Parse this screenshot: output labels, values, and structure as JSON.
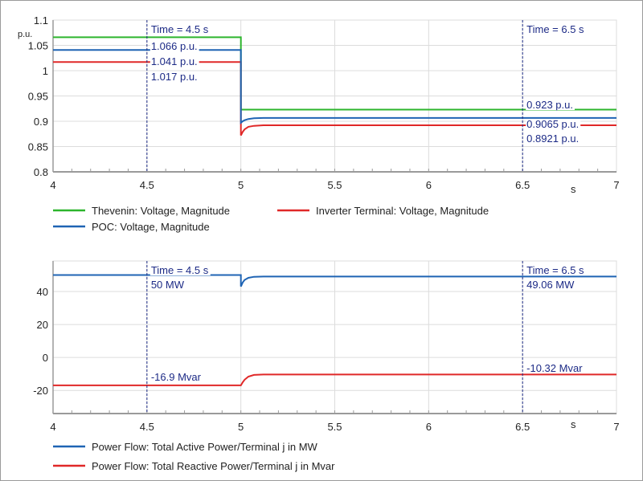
{
  "colors": {
    "green": "#2db52d",
    "blue": "#1f64b4",
    "red": "#e02828",
    "annotation": "#1c2a86",
    "grid": "#dcdcdc",
    "axis": "#9a9a9a"
  },
  "chart_data": [
    {
      "type": "line",
      "xlabel": "s",
      "ylabel": "p.u.",
      "xlim": [
        4,
        7
      ],
      "ylim": [
        0.8,
        1.1
      ],
      "xticks": [
        "4",
        "4.5",
        "5",
        "5.5",
        "6",
        "6.5",
        "7"
      ],
      "yticks": [
        "0.8",
        "0.85",
        "0.9",
        "0.95",
        "1",
        "1.05",
        "1.1"
      ],
      "grid": true,
      "legend_position": "bottom",
      "series": [
        {
          "name": "Thevenin: Voltage, Magnitude",
          "color": "green",
          "points": [
            [
              4,
              1.066
            ],
            [
              5,
              1.066
            ],
            [
              5,
              0.923
            ],
            [
              7,
              0.923
            ]
          ]
        },
        {
          "name": "Inverter Terminal: Voltage, Magnitude",
          "color": "red",
          "points": [
            [
              4,
              1.017
            ],
            [
              5,
              1.017
            ],
            [
              5,
              0.872
            ],
            [
              5.01,
              0.879
            ],
            [
              5.02,
              0.884
            ],
            [
              5.04,
              0.889
            ],
            [
              5.07,
              0.891
            ],
            [
              5.12,
              0.8921
            ],
            [
              7,
              0.8921
            ]
          ]
        },
        {
          "name": "POC: Voltage, Magnitude",
          "color": "blue",
          "points": [
            [
              4,
              1.041
            ],
            [
              5,
              1.041
            ],
            [
              5,
              0.897
            ],
            [
              5.01,
              0.9
            ],
            [
              5.02,
              0.902
            ],
            [
              5.04,
              0.9045
            ],
            [
              5.07,
              0.906
            ],
            [
              5.12,
              0.9065
            ],
            [
              7,
              0.9065
            ]
          ]
        }
      ],
      "annotations": [
        {
          "time": 4.5,
          "lines": [
            "Time = 4.5 s",
            "1.066 p.u.",
            "1.041 p.u.",
            "1.017 p.u."
          ]
        },
        {
          "time": 6.5,
          "lines": [
            "Time = 6.5 s",
            "0.923 p.u.",
            "0.9065 p.u.",
            "0.8921 p.u."
          ]
        }
      ]
    },
    {
      "type": "line",
      "xlabel": "s",
      "xlim": [
        4,
        7
      ],
      "ylim": [
        -34,
        58.5
      ],
      "xticks": [
        "4",
        "4.5",
        "5",
        "5.5",
        "6",
        "6.5",
        "7"
      ],
      "yticks": [
        "-20",
        "0",
        "20",
        "40"
      ],
      "grid": true,
      "legend_position": "bottom",
      "series": [
        {
          "name": "Power Flow: Total Active Power/Terminal j in MW",
          "color": "blue",
          "points": [
            [
              4,
              50
            ],
            [
              5,
              50
            ],
            [
              5,
              43
            ],
            [
              5.01,
              45.5
            ],
            [
              5.02,
              47
            ],
            [
              5.04,
              48.3
            ],
            [
              5.07,
              48.9
            ],
            [
              5.12,
              49.06
            ],
            [
              7,
              49.06
            ]
          ]
        },
        {
          "name": "Power Flow: Total Reactive Power/Terminal j in Mvar",
          "color": "red",
          "points": [
            [
              4,
              -16.9
            ],
            [
              5,
              -16.9
            ],
            [
              5.01,
              -15
            ],
            [
              5.02,
              -13.5
            ],
            [
              5.04,
              -11.6
            ],
            [
              5.07,
              -10.6
            ],
            [
              5.12,
              -10.32
            ],
            [
              7,
              -10.32
            ]
          ]
        }
      ],
      "annotations": [
        {
          "time": 4.5,
          "lines": [
            "Time = 4.5 s",
            "50 MW"
          ],
          "extra": "-16.9 Mvar"
        },
        {
          "time": 6.5,
          "lines": [
            "Time = 6.5 s",
            "49.06 MW"
          ],
          "extra": "-10.32 Mvar"
        }
      ]
    }
  ]
}
